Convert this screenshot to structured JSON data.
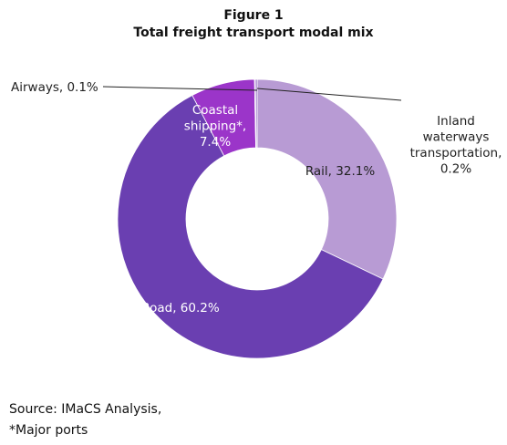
{
  "header": {
    "figure_label": "Figure 1",
    "title": "Total freight transport modal mix"
  },
  "footer": {
    "source": "Source: IMaCS Analysis,",
    "note": "*Major ports"
  },
  "chart_data": {
    "type": "pie",
    "donut": true,
    "title": "Total freight transport modal mix",
    "slices": [
      {
        "label": "Rail",
        "value": 32.1,
        "color": "#b89bd4",
        "label_lines": [
          "Rail, 32.1%"
        ]
      },
      {
        "label": "Road",
        "value": 60.2,
        "color": "#6a3fb1",
        "label_lines": [
          "Road, 60.2%"
        ]
      },
      {
        "label": "Coastal shipping*",
        "value": 7.4,
        "color": "#9b35c9",
        "label_lines": [
          "Coastal",
          "shipping*,",
          "7.4%"
        ]
      },
      {
        "label": "Airways",
        "value": 0.1,
        "color": "#7a4aa8",
        "label_lines": [
          "Airways, 0.1%"
        ]
      },
      {
        "label": "Inland waterways transportation",
        "value": 0.2,
        "color": "#8a5cc0",
        "label_lines": [
          "Inland",
          "waterways",
          "transportation,",
          "0.2%"
        ]
      }
    ]
  }
}
